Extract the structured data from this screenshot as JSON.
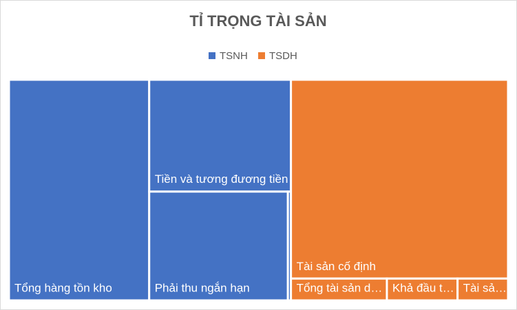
{
  "chart_data": {
    "type": "treemap",
    "title": "TỈ TRỌNG TÀI SẢN",
    "legend": "top",
    "series": [
      {
        "name": "TSNH",
        "color": "#4472c4",
        "categories": [
          "Tổng hàng tồn kho",
          "Tiền và tương đương tiền",
          "Phải thu ngắn hạn",
          null
        ],
        "values": [
          28.1,
          14.4,
          13.7,
          0.3
        ]
      },
      {
        "name": "TSDH",
        "color": "#ed7d31",
        "categories": [
          "Tài sản cố định",
          "Tổng tài sản d…",
          "Khả đầu t…",
          "Tài sả…"
        ],
        "values": [
          39.2,
          1.9,
          1.4,
          1.0
        ]
      }
    ]
  }
}
